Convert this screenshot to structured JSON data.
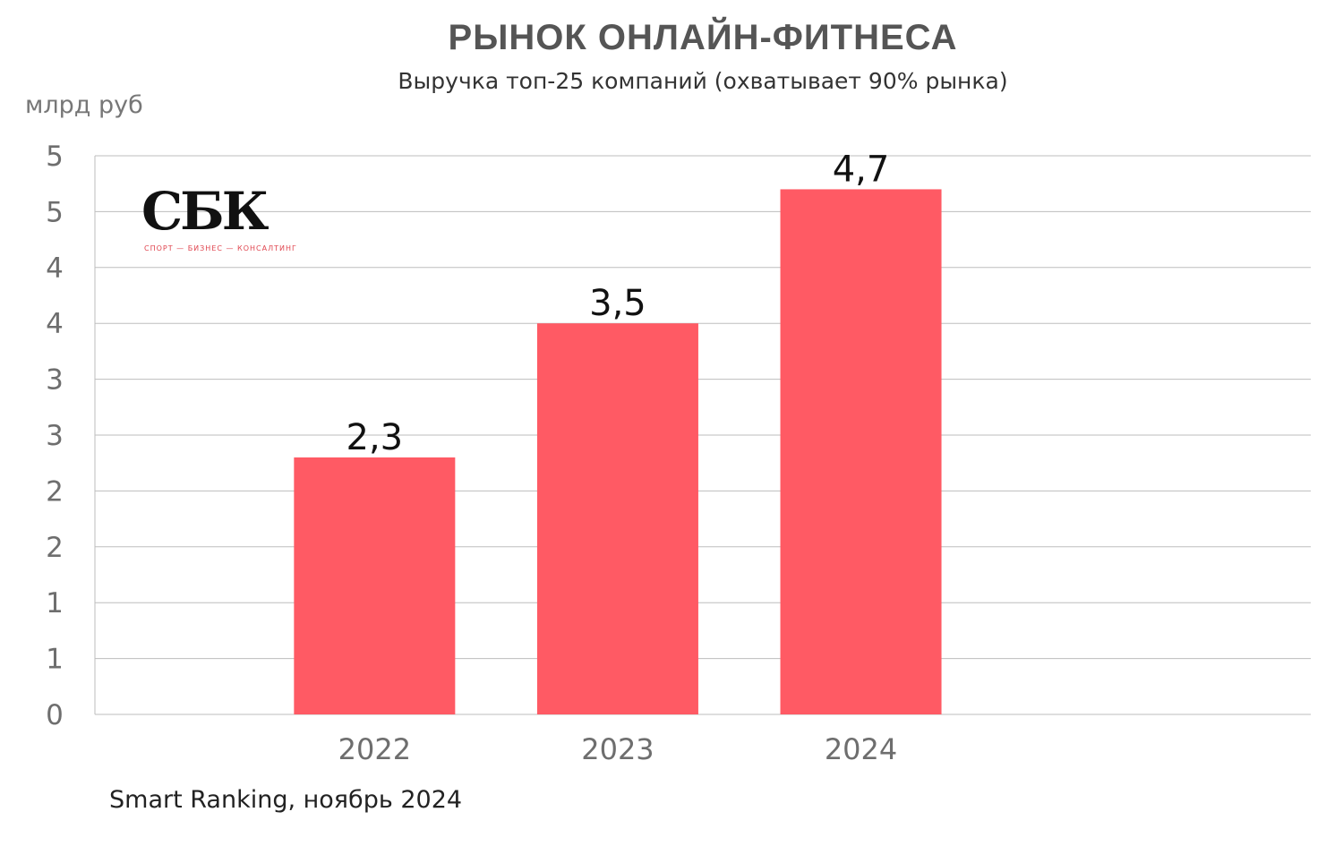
{
  "header": {
    "title": "РЫНОК ОНЛАЙН-ФИТНЕСА",
    "subtitle": "Выручка топ-25 компаний (охватывает 90% рынка)",
    "unit": "млрд руб"
  },
  "logo": {
    "mark": "СБК",
    "tagline": "СПОРТ — БИЗНЕС — КОНСАЛТИНГ"
  },
  "footer": {
    "source": "Smart Ranking, ноябрь 2024"
  },
  "colors": {
    "bar": "#ff5a64",
    "grid": "#bdbdbd",
    "tick_text": "#6e6e6e",
    "label_text": "#111111"
  },
  "chart_data": {
    "type": "bar",
    "categories": [
      "2022",
      "2023",
      "2024"
    ],
    "x_positions": [
      2022,
      2023,
      2024
    ],
    "xlim": [
      2020.85,
      2025.85
    ],
    "values": [
      2.3,
      3.5,
      4.7
    ],
    "data_labels": [
      "2,3",
      "3,5",
      "4,7"
    ],
    "ytick_values": [
      0,
      0.5,
      1,
      1.5,
      2,
      2.5,
      3,
      3.5,
      4,
      4.5,
      5
    ],
    "ytick_labels": [
      "0",
      "1",
      "1",
      "2",
      "2",
      "3",
      "3",
      "4",
      "4",
      "5",
      "5"
    ],
    "ylim": [
      0,
      5
    ],
    "grid": true,
    "xlabel": "",
    "ylabel": "млрд руб",
    "title": "РЫНОК ОНЛАЙН-ФИТНЕСА"
  }
}
